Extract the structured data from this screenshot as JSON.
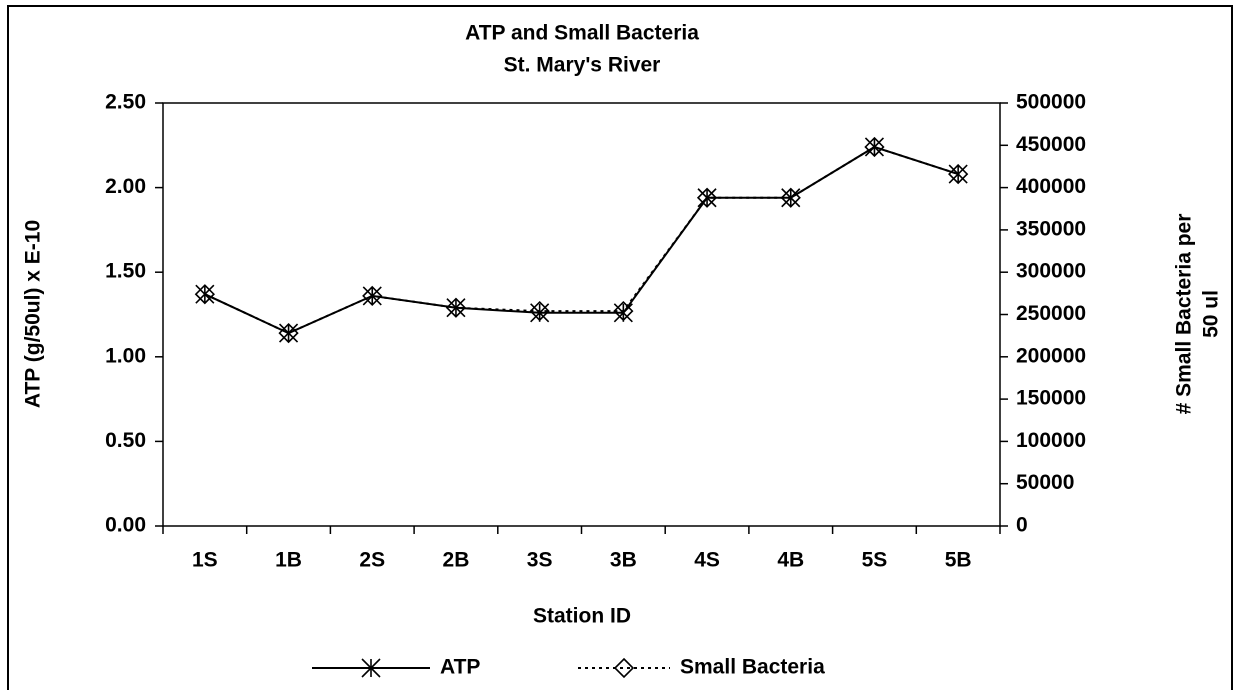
{
  "chart_data": {
    "type": "line",
    "title": "ATP and Small Bacteria",
    "subtitle": "St. Mary's River",
    "xlabel": "Station ID",
    "ylabel": "ATP (g/50ul) x E-10",
    "y2label": [
      "# Small Bacteria per",
      "50 ul"
    ],
    "categories": [
      "1S",
      "1B",
      "2S",
      "2B",
      "3S",
      "3B",
      "4S",
      "4B",
      "5S",
      "5B"
    ],
    "series": [
      {
        "name": "ATP",
        "color": "#000000",
        "marker": "star",
        "linestyle": "solid",
        "values": [
          1.37,
          1.14,
          1.36,
          1.29,
          1.26,
          1.26,
          1.94,
          1.94,
          2.24,
          2.08
        ]
      },
      {
        "name": "Small Bacteria",
        "color": "#000000",
        "marker": "diamond",
        "linestyle": "dotted",
        "axis": "y2",
        "values": [
          274000,
          228000,
          272000,
          258000,
          254000,
          254000,
          388000,
          388000,
          448000,
          416000
        ]
      }
    ],
    "ylim": [
      0,
      2.5
    ],
    "yticks": [
      {
        "value": 0,
        "label": "0.00"
      },
      {
        "value": 0.5,
        "label": "0.50"
      },
      {
        "value": 1,
        "label": "1.00"
      },
      {
        "value": 1.5,
        "label": "1.50"
      },
      {
        "value": 2,
        "label": "2.00"
      },
      {
        "value": 2.5,
        "label": "2.50"
      }
    ],
    "y2lim": [
      0,
      500000
    ],
    "y2ticks": [
      0,
      50000,
      100000,
      150000,
      200000,
      250000,
      300000,
      350000,
      400000,
      450000,
      500000
    ],
    "grid": false,
    "legend": "bottom"
  }
}
